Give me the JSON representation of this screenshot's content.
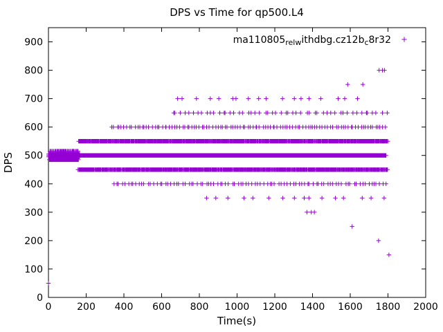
{
  "page": {
    "background": "#ffffff"
  },
  "chart_data": {
    "type": "scatter",
    "title": "DPS vs Time for qp500.L4",
    "xlabel": "Time(s)",
    "ylabel": "DPS",
    "xlim": [
      0,
      2000
    ],
    "ylim": [
      0,
      950
    ],
    "xticks": [
      0,
      200,
      400,
      600,
      800,
      1000,
      1200,
      1400,
      1600,
      1800,
      2000
    ],
    "yticks": [
      0,
      100,
      200,
      300,
      400,
      500,
      600,
      700,
      800,
      900
    ],
    "grid": false,
    "legend_position": "top-right-inside",
    "series_name_segments": [
      {
        "text": "ma110805",
        "sub": false
      },
      {
        "text": "rel",
        "sub": true
      },
      {
        "text": "w",
        "sub": true
      },
      {
        "text": "ithdbg.cz12b",
        "sub": false
      },
      {
        "text": "c",
        "sub": true
      },
      {
        "text": "8r32",
        "sub": false
      }
    ],
    "marker": "plus",
    "marker_color": "#9400D3",
    "axis_color": "#000000",
    "bands": [
      {
        "y": 500,
        "x_start": 0,
        "x_end": 1790,
        "count": 1500
      },
      {
        "y": 495,
        "x_start": 0,
        "x_end": 165,
        "count": 180
      },
      {
        "y": 505,
        "x_start": 0,
        "x_end": 165,
        "count": 180
      },
      {
        "y": 485,
        "x_start": 5,
        "x_end": 160,
        "count": 70
      },
      {
        "y": 515,
        "x_start": 5,
        "x_end": 160,
        "count": 40
      },
      {
        "y": 450,
        "x_start": 155,
        "x_end": 1800,
        "count": 620
      },
      {
        "y": 550,
        "x_start": 160,
        "x_end": 1800,
        "count": 620
      },
      {
        "y": 400,
        "x_start": 335,
        "x_end": 1795,
        "count": 95
      },
      {
        "y": 600,
        "x_start": 330,
        "x_end": 1795,
        "count": 110
      },
      {
        "y": 650,
        "x_start": 645,
        "x_end": 1800,
        "count": 52
      },
      {
        "y": 700,
        "x_start": 640,
        "x_end": 1665,
        "count": 18
      },
      {
        "y": 350,
        "x_start": 820,
        "x_end": 1800,
        "count": 16
      },
      {
        "y": 300,
        "x_start": 1365,
        "x_end": 1415,
        "count": 3
      },
      {
        "y": 750,
        "x_start": 1555,
        "x_end": 1675,
        "count": 2
      },
      {
        "y": 800,
        "x_start": 1735,
        "x_end": 1800,
        "count": 3
      }
    ],
    "points": [
      [
        0,
        50
      ],
      [
        1610,
        250
      ],
      [
        1750,
        200
      ],
      [
        1805,
        150
      ]
    ]
  }
}
